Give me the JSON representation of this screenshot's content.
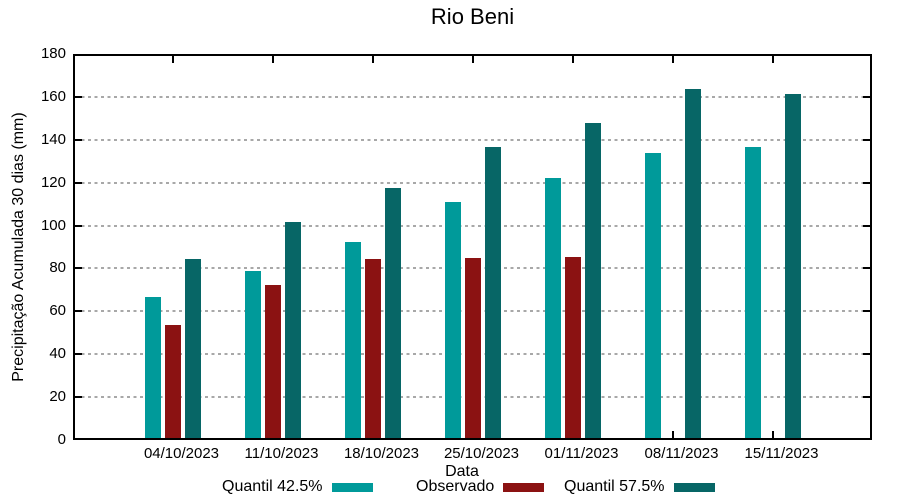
{
  "chart_data": {
    "type": "bar",
    "title": "Rio Beni",
    "xlabel": "Data",
    "ylabel": "Precipitação Acumulada 30 dias (mm)",
    "ylim": [
      0,
      180
    ],
    "yticks": [
      0,
      20,
      40,
      60,
      80,
      100,
      120,
      140,
      160,
      180
    ],
    "grid": {
      "lines": "horizontal",
      "style": "dashed",
      "color": "#a8a8a8"
    },
    "legend_position": "bottom",
    "categories": [
      "04/10/2023",
      "11/10/2023",
      "18/10/2023",
      "25/10/2023",
      "01/11/2023",
      "08/11/2023",
      "15/11/2023"
    ],
    "series": [
      {
        "name": "Quantil 42.5%",
        "color": "#009A9A",
        "values": [
          66.5,
          79,
          92.5,
          111,
          122,
          134,
          136.5
        ]
      },
      {
        "name": "Observado",
        "color": "#8B1212",
        "values": [
          53.5,
          72.5,
          84.5,
          85,
          85.5,
          null,
          null
        ]
      },
      {
        "name": "Quantil 57.5%",
        "color": "#076666",
        "values": [
          84.5,
          101.5,
          117.5,
          136.5,
          148,
          163.5,
          161.5
        ]
      }
    ]
  }
}
